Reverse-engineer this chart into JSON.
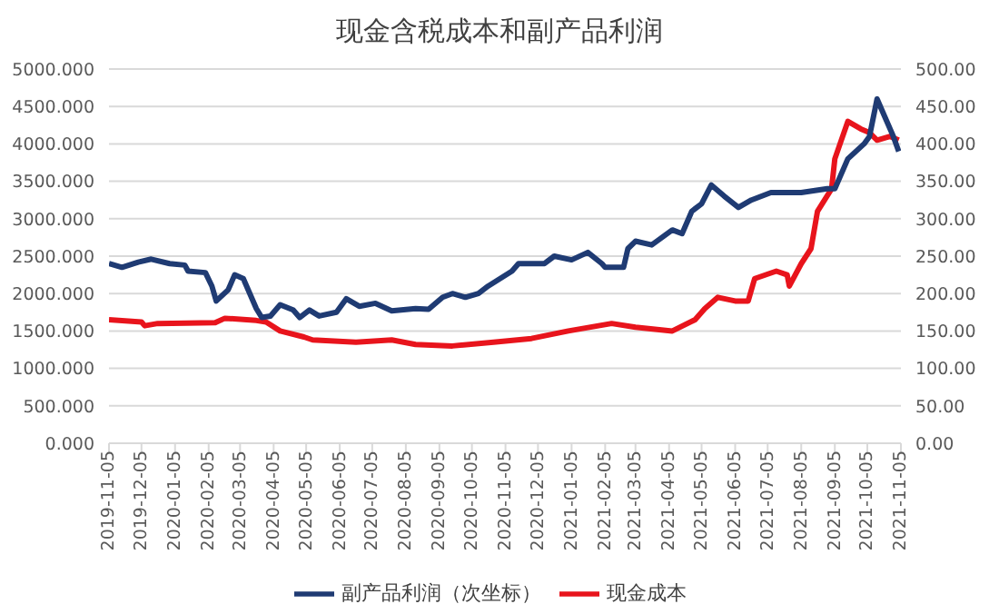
{
  "chart_data": {
    "type": "line",
    "title": "现金含税成本和副产品利润",
    "xlim": [
      "2019-11-05",
      "2021-11-05"
    ],
    "xticks": [
      "2019-11-05",
      "2019-12-05",
      "2020-01-05",
      "2020-02-05",
      "2020-03-05",
      "2020-04-05",
      "2020-05-05",
      "2020-06-05",
      "2020-07-05",
      "2020-08-05",
      "2020-09-05",
      "2020-10-05",
      "2020-11-05",
      "2020-12-05",
      "2021-01-05",
      "2021-02-05",
      "2021-03-05",
      "2021-04-05",
      "2021-05-05",
      "2021-06-05",
      "2021-07-05",
      "2021-08-05",
      "2021-09-05",
      "2021-10-05",
      "2021-11-05"
    ],
    "ylim": [
      0,
      5000
    ],
    "yticks": [
      {
        "value": 0,
        "label": "0.000"
      },
      {
        "value": 500,
        "label": "500.000"
      },
      {
        "value": 1000,
        "label": "1000.000"
      },
      {
        "value": 1500,
        "label": "1500.000"
      },
      {
        "value": 2000,
        "label": "2000.000"
      },
      {
        "value": 2500,
        "label": "2500.000"
      },
      {
        "value": 3000,
        "label": "3000.000"
      },
      {
        "value": 3500,
        "label": "3500.000"
      },
      {
        "value": 4000,
        "label": "4000.000"
      },
      {
        "value": 4500,
        "label": "4500.000"
      },
      {
        "value": 5000,
        "label": "5000.000"
      }
    ],
    "y2lim": [
      0,
      500
    ],
    "y2ticks": [
      {
        "value": 0,
        "label": "0.00"
      },
      {
        "value": 50,
        "label": "50.00"
      },
      {
        "value": 100,
        "label": "100.00"
      },
      {
        "value": 150,
        "label": "150.00"
      },
      {
        "value": 200,
        "label": "200.00"
      },
      {
        "value": 250,
        "label": "250.00"
      },
      {
        "value": 300,
        "label": "300.00"
      },
      {
        "value": 350,
        "label": "350.00"
      },
      {
        "value": 400,
        "label": "400.00"
      },
      {
        "value": 450,
        "label": "450.00"
      },
      {
        "value": 500,
        "label": "500.00"
      }
    ],
    "grid": "y",
    "legend": "bottom",
    "marker": "none",
    "line_style": "solid",
    "series": [
      {
        "name": "现金成本",
        "color": "#e8141c",
        "x": [
          "2019-11-05",
          "2019-12-05",
          "2019-12-08",
          "2019-12-20",
          "2020-02-11",
          "2020-02-20",
          "2020-03-20",
          "2020-03-29",
          "2020-04-11",
          "2020-05-03",
          "2020-05-11",
          "2020-06-20",
          "2020-07-23",
          "2020-08-14",
          "2020-09-17",
          "2020-10-25",
          "2020-11-29",
          "2021-01-02",
          "2021-02-11",
          "2021-03-05",
          "2021-04-08",
          "2021-04-29",
          "2021-05-08",
          "2021-05-20",
          "2021-06-05",
          "2021-06-17",
          "2021-06-23",
          "2021-07-13",
          "2021-07-23",
          "2021-07-25",
          "2021-08-05",
          "2021-08-14",
          "2021-08-20",
          "2021-09-02",
          "2021-09-05",
          "2021-09-17",
          "2021-09-29",
          "2021-10-07",
          "2021-10-14",
          "2021-10-26",
          "2021-11-03"
        ],
        "values": [
          1650,
          1620,
          1570,
          1600,
          1610,
          1670,
          1640,
          1620,
          1500,
          1420,
          1380,
          1350,
          1380,
          1320,
          1300,
          1350,
          1400,
          1500,
          1600,
          1550,
          1500,
          1650,
          1800,
          1950,
          1900,
          1900,
          2200,
          2300,
          2250,
          2100,
          2400,
          2600,
          3100,
          3400,
          3800,
          4300,
          4200,
          4150,
          4050,
          4100,
          4050
        ]
      },
      {
        "name": "副产品利润（次坐标）",
        "color": "#1f3b73",
        "axis": "y2",
        "x": [
          "2019-11-05",
          "2019-11-17",
          "2019-12-02",
          "2019-12-14",
          "2019-12-31",
          "2020-01-14",
          "2020-01-17",
          "2020-02-02",
          "2020-02-08",
          "2020-02-12",
          "2020-02-23",
          "2020-02-29",
          "2020-03-08",
          "2020-03-20",
          "2020-03-25",
          "2020-04-02",
          "2020-04-11",
          "2020-04-23",
          "2020-04-29",
          "2020-05-08",
          "2020-05-17",
          "2020-06-02",
          "2020-06-11",
          "2020-06-23",
          "2020-07-08",
          "2020-07-23",
          "2020-08-14",
          "2020-08-26",
          "2020-09-08",
          "2020-09-17",
          "2020-09-29",
          "2020-10-11",
          "2020-10-20",
          "2020-11-11",
          "2020-11-17",
          "2020-12-11",
          "2020-12-20",
          "2021-01-05",
          "2021-01-20",
          "2021-02-02",
          "2021-02-05",
          "2021-02-22",
          "2021-02-26",
          "2021-03-05",
          "2021-03-20",
          "2021-04-08",
          "2021-04-17",
          "2021-04-26",
          "2021-05-05",
          "2021-05-14",
          "2021-05-26",
          "2021-06-08",
          "2021-06-20",
          "2021-07-08",
          "2021-08-05",
          "2021-08-29",
          "2021-09-05",
          "2021-09-17",
          "2021-10-02",
          "2021-10-07",
          "2021-10-14",
          "2021-10-20",
          "2021-10-29",
          "2021-11-03"
        ],
        "values": [
          240,
          235,
          242,
          246,
          240,
          238,
          230,
          228,
          210,
          190,
          205,
          225,
          220,
          180,
          168,
          170,
          185,
          178,
          168,
          178,
          170,
          175,
          193,
          183,
          187,
          177,
          180,
          179,
          195,
          200,
          195,
          200,
          210,
          230,
          240,
          240,
          250,
          245,
          255,
          240,
          235,
          235,
          260,
          270,
          265,
          285,
          280,
          310,
          320,
          345,
          330,
          315,
          325,
          335,
          335,
          340,
          340,
          380,
          400,
          410,
          460,
          440,
          410,
          390
        ]
      }
    ]
  }
}
